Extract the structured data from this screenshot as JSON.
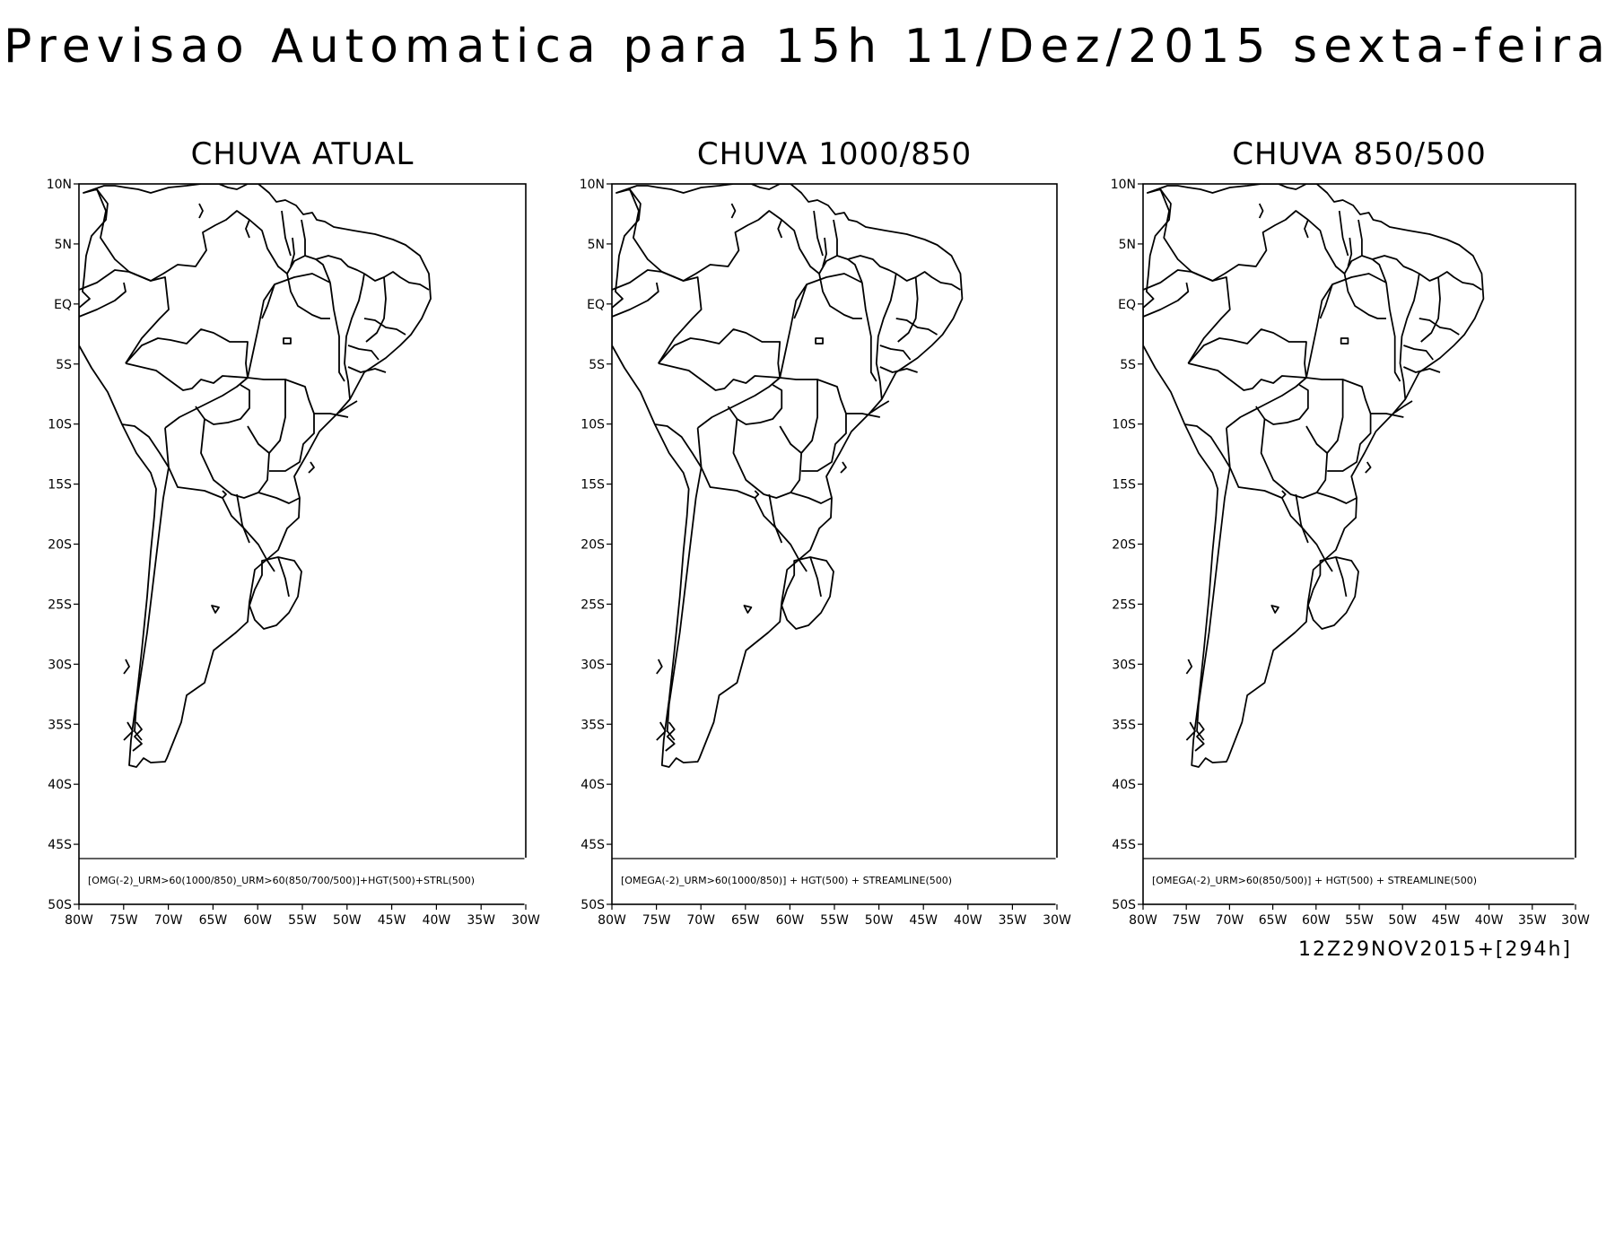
{
  "title": "Previsao Automatica para 15h 11/Dez/2015 sexta-feira",
  "run_label": "12Z29NOV2015+[294h]",
  "lat_labels": [
    "10N",
    "5N",
    "EQ",
    "5S",
    "10S",
    "15S",
    "20S",
    "25S",
    "30S",
    "35S",
    "40S",
    "45S",
    "50S"
  ],
  "lon_labels": [
    "80W",
    "75W",
    "70W",
    "65W",
    "60W",
    "55W",
    "50W",
    "45W",
    "40W",
    "35W",
    "30W"
  ],
  "panels": [
    {
      "title": "CHUVA ATUAL",
      "footer": "[OMG(-2)_URM>60(1000/850)_URM>60(850/700/500)]+HGT(500)+STRL(500)"
    },
    {
      "title": "CHUVA 1000/850",
      "footer": "[OMEGA(-2)_URM>60(1000/850)] + HGT(500) + STREAMLINE(500)"
    },
    {
      "title": "CHUVA 850/500",
      "footer": "[OMEGA(-2)_URM>60(850/500)] + HGT(500) + STREAMLINE(500)"
    }
  ],
  "map_extent": {
    "lon_min": -80,
    "lon_max": -30,
    "lat_min": -50,
    "lat_max": 10
  }
}
